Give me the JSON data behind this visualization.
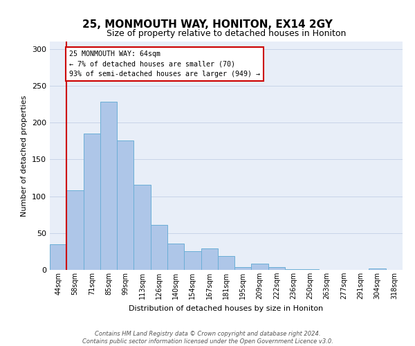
{
  "title": "25, MONMOUTH WAY, HONITON, EX14 2GY",
  "subtitle": "Size of property relative to detached houses in Honiton",
  "xlabel": "Distribution of detached houses by size in Honiton",
  "ylabel": "Number of detached properties",
  "bin_labels": [
    "44sqm",
    "58sqm",
    "71sqm",
    "85sqm",
    "99sqm",
    "113sqm",
    "126sqm",
    "140sqm",
    "154sqm",
    "167sqm",
    "181sqm",
    "195sqm",
    "209sqm",
    "222sqm",
    "236sqm",
    "250sqm",
    "263sqm",
    "277sqm",
    "291sqm",
    "304sqm",
    "318sqm"
  ],
  "bar_heights": [
    35,
    108,
    185,
    228,
    176,
    116,
    61,
    36,
    25,
    29,
    19,
    4,
    8,
    4,
    1,
    1,
    0,
    0,
    0,
    2,
    0
  ],
  "bar_color": "#aec6e8",
  "bar_edge_color": "#6baed6",
  "vline_x": 1,
  "vline_color": "#cc0000",
  "annotation_text": "25 MONMOUTH WAY: 64sqm\n← 7% of detached houses are smaller (70)\n93% of semi-detached houses are larger (949) →",
  "annotation_box_color": "#cc0000",
  "ylim": [
    0,
    310
  ],
  "yticks": [
    0,
    50,
    100,
    150,
    200,
    250,
    300
  ],
  "footer": "Contains HM Land Registry data © Crown copyright and database right 2024.\nContains public sector information licensed under the Open Government Licence v3.0.",
  "grid_color": "#c8d4e8",
  "background_color": "#e8eef8",
  "plot_background": "#ffffff"
}
